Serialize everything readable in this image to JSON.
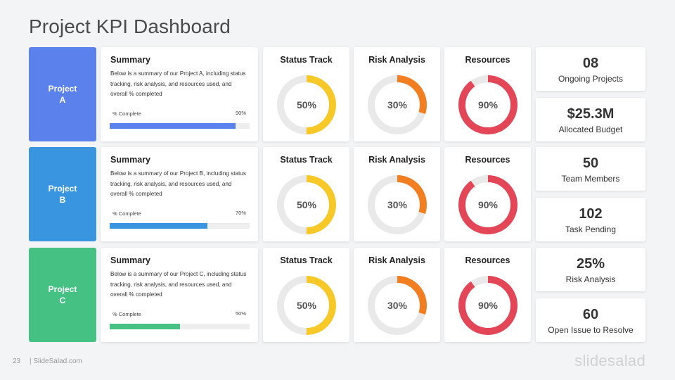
{
  "page": {
    "title": "Project KPI Dashboard",
    "page_number": "23",
    "site": "| SlideSalad.com",
    "brand": "slidesalad"
  },
  "colors": {
    "project_a": "#5b81ec",
    "project_b": "#3a95e0",
    "project_c": "#45c283",
    "status": "#f6c928",
    "risk": "#f27e22",
    "resources": "#e24657",
    "track": "#e9e9e9"
  },
  "projects": [
    {
      "name_line1": "Project",
      "name_line2": "A",
      "summary_title": "Summary",
      "summary_text": "Below is a summary of our Project A, including status tracking, risk analysis, and resources used, and overall % completed",
      "complete_label": "% Complete",
      "complete_value": "90%",
      "complete_fraction": 0.9,
      "status_title": "Status Track",
      "status_value": "50%",
      "status_fraction": 0.5,
      "risk_title": "Risk Analysis",
      "risk_value": "30%",
      "risk_fraction": 0.3,
      "resources_title": "Resources",
      "resources_value": "90%",
      "resources_fraction": 0.9
    },
    {
      "name_line1": "Project",
      "name_line2": "B",
      "summary_title": "Summary",
      "summary_text": "Below is a summary of our Project B, including status tracking, risk analysis, and resources used, and overall % completed",
      "complete_label": "% Complete",
      "complete_value": "70%",
      "complete_fraction": 0.7,
      "status_title": "Status Track",
      "status_value": "50%",
      "status_fraction": 0.5,
      "risk_title": "Risk Analysis",
      "risk_value": "30%",
      "risk_fraction": 0.3,
      "resources_title": "Resources",
      "resources_value": "90%",
      "resources_fraction": 0.9
    },
    {
      "name_line1": "Project",
      "name_line2": "C",
      "summary_title": "Summary",
      "summary_text": "Below is a summary of our Project C, including status tracking, risk analysis, and resources used, and overall % completed",
      "complete_label": "% Complete",
      "complete_value": "50%",
      "complete_fraction": 0.5,
      "status_title": "Status Track",
      "status_value": "50%",
      "status_fraction": 0.5,
      "risk_title": "Risk Analysis",
      "risk_value": "30%",
      "risk_fraction": 0.3,
      "resources_title": "Resources",
      "resources_value": "90%",
      "resources_fraction": 0.9
    }
  ],
  "stats": [
    {
      "value": "08",
      "label": "Ongoing Projects"
    },
    {
      "value": "$25.3M",
      "label": "Allocated Budget"
    },
    {
      "value": "50",
      "label": "Team Members"
    },
    {
      "value": "102",
      "label": "Task Pending"
    },
    {
      "value": "25%",
      "label": "Risk Analysis"
    },
    {
      "value": "60",
      "label": "Open Issue to Resolve"
    }
  ]
}
